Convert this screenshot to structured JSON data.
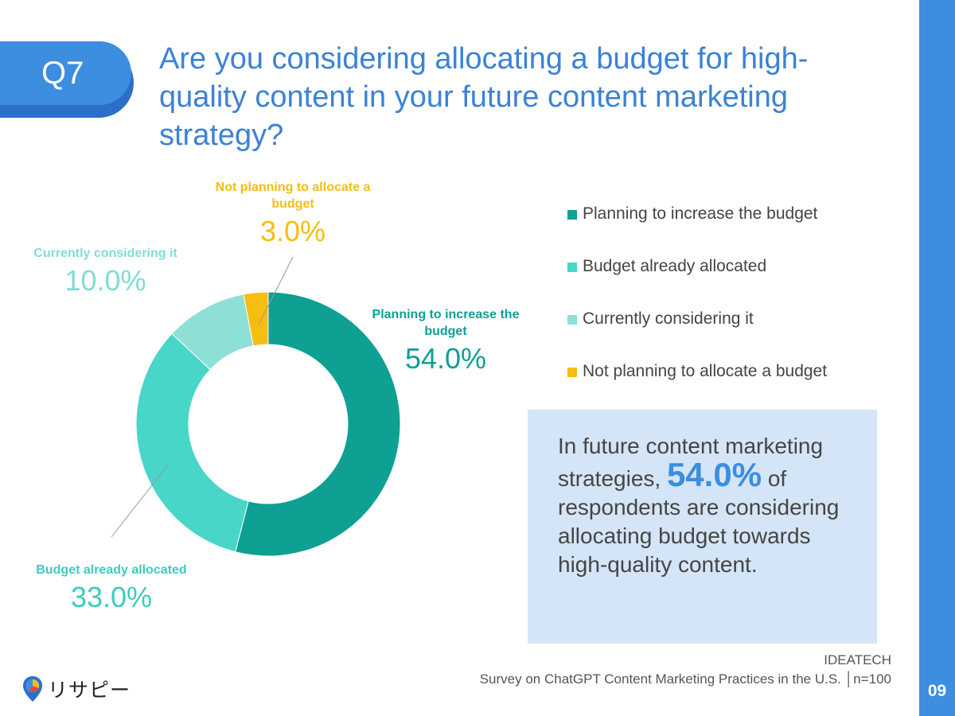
{
  "question_badge": "Q7",
  "title": "Are you considering allocating a budget for high-quality content in your future content marketing strategy?",
  "chart_data": {
    "type": "pie",
    "donut": true,
    "categories": [
      "Planning to increase the budget",
      "Budget already allocated",
      "Currently considering it",
      "Not planning to allocate a budget"
    ],
    "values": [
      54.0,
      33.0,
      10.0,
      3.0
    ],
    "value_labels": [
      "54.0%",
      "33.0%",
      "10.0%",
      "3.0%"
    ],
    "colors": [
      "#0ea093",
      "#48d6c8",
      "#8ce0d6",
      "#f7bd10"
    ],
    "slice_labels": {
      "increase": "Planning to increase the budget",
      "allocated": "Budget already allocated",
      "considering": "Currently considering it",
      "not_planning": "Not planning to allocate a budget"
    },
    "legend": [
      "Planning to increase the budget",
      "Budget already allocated",
      "Currently considering it",
      "Not planning to allocate a budget"
    ],
    "legend_placement": "right"
  },
  "callout": {
    "text_before": "In future content marketing strategies,",
    "highlight": "54.0%",
    "text_after": "of respondents are considering allocating budget towards high-quality content."
  },
  "source": {
    "organization": "IDEATECH",
    "survey": "Survey on ChatGPT Content Marketing Practices in the U.S.",
    "sample": "n=100"
  },
  "logo": {
    "text": "リサピー",
    "icon": "pin-icon"
  },
  "page_number": "09",
  "colors": {
    "accent": "#3d8de0",
    "title": "#3b82d6",
    "callout_bg": "#d4e5f7"
  }
}
